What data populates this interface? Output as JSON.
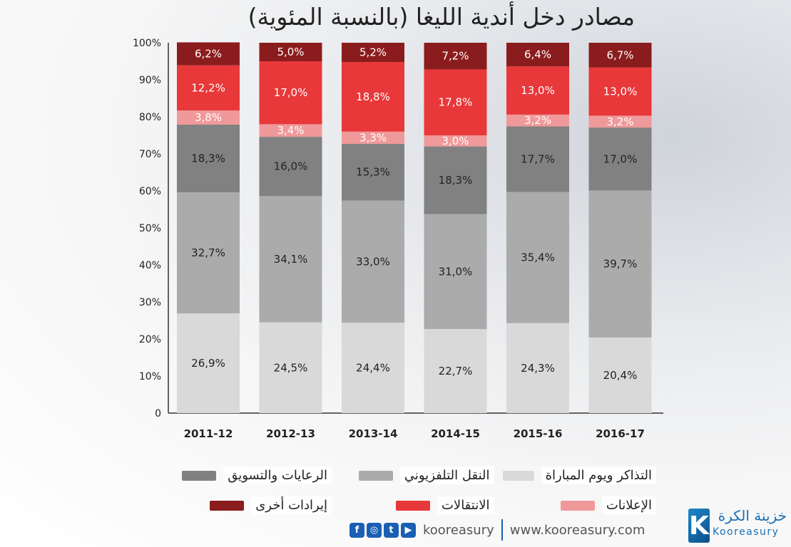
{
  "title": "مصادر دخل أندية الليغا (بالنسبة المئوية)",
  "colors": {
    "tickets": "#d9d9d9",
    "tv": "#ababab",
    "sponsorship": "#818181",
    "ads": "#f0999a",
    "transfers": "#e8383a",
    "other": "#8b1c1d"
  },
  "chart_data": {
    "type": "bar",
    "stacked": true,
    "categories": [
      "2011-12",
      "2012-13",
      "2013-14",
      "2014-15",
      "2015-16",
      "2016-17"
    ],
    "y_ticks": [
      "0",
      "10%",
      "20%",
      "30%",
      "40%",
      "50%",
      "60%",
      "70%",
      "80%",
      "90%",
      "100%"
    ],
    "ylim": [
      0,
      100
    ],
    "series": [
      {
        "key": "tickets",
        "name": "التذاكر ويوم المباراة",
        "values": [
          26.9,
          24.5,
          24.4,
          22.7,
          24.3,
          20.4
        ],
        "labels": [
          "26,9%",
          "24,5%",
          "24,4%",
          "22,7%",
          "24,3%",
          "20,4%"
        ]
      },
      {
        "key": "tv",
        "name": "النقل التلفزيوني",
        "values": [
          32.7,
          34.1,
          33.0,
          31.0,
          35.4,
          39.7
        ],
        "labels": [
          "32,7%",
          "34,1%",
          "33,0%",
          "31,0%",
          "35,4%",
          "39,7%"
        ]
      },
      {
        "key": "sponsorship",
        "name": "الرعايات والتسويق",
        "values": [
          18.3,
          16.0,
          15.3,
          18.3,
          17.7,
          17.0
        ],
        "labels": [
          "18,3%",
          "16,0%",
          "15,3%",
          "18,3%",
          "17,7%",
          "17,0%"
        ]
      },
      {
        "key": "ads",
        "name": "الإعلانات",
        "values": [
          3.8,
          3.4,
          3.3,
          3.0,
          3.2,
          3.2
        ],
        "labels": [
          "3,8%",
          "3,4%",
          "3,3%",
          "3,0%",
          "3,2%",
          "3,2%"
        ]
      },
      {
        "key": "transfers",
        "name": "الانتقالات",
        "values": [
          12.2,
          17.0,
          18.8,
          17.8,
          13.0,
          13.0
        ],
        "labels": [
          "12,2%",
          "17,0%",
          "18,8%",
          "17,8%",
          "13,0%",
          "13,0%"
        ]
      },
      {
        "key": "other",
        "name": "إيرادات أخرى",
        "values": [
          6.2,
          5.0,
          5.2,
          7.2,
          6.4,
          6.7
        ],
        "labels": [
          "6,2%",
          "5,0%",
          "5,2%",
          "7,2%",
          "6,4%",
          "6,7%"
        ]
      }
    ],
    "legend": "bottom",
    "grid": false
  },
  "legend_rows": [
    [
      {
        "key": "tickets",
        "label": "التذاكر ويوم المباراة"
      },
      {
        "key": "tv",
        "label": "النقل التلفزيوني"
      },
      {
        "key": "sponsorship",
        "label": "الرعايات والتسويق"
      }
    ],
    [
      {
        "key": "ads",
        "label": "الإعلانات"
      },
      {
        "key": "transfers",
        "label": "الانتقالات"
      },
      {
        "key": "other",
        "label": "إيرادات أخرى"
      }
    ]
  ],
  "footer": {
    "social_icons": [
      "facebook-icon",
      "instagram-icon",
      "twitter-icon",
      "youtube-icon"
    ],
    "handle": "kooreasury",
    "website": "www.kooreasury.com"
  },
  "logo": {
    "mark": "K",
    "arabic": "خزينة الكرة",
    "english": "Kooreasury"
  }
}
